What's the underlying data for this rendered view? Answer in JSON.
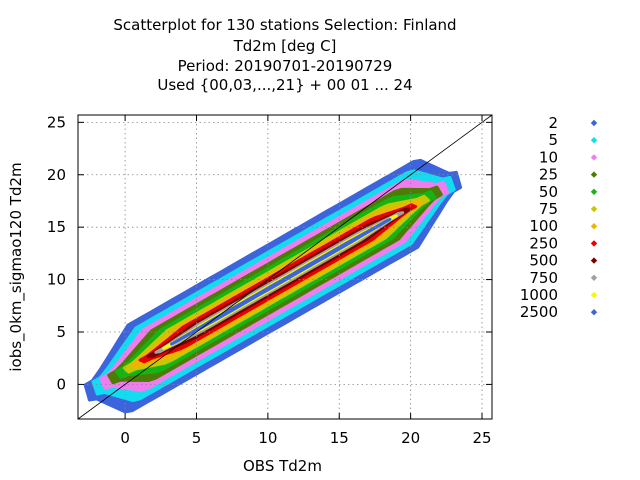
{
  "chart_data": {
    "type": "scatter",
    "title_lines": [
      "Scatterplot for  130 stations Selection: Finland",
      "Td2m [deg C]",
      "Period: 20190701-20190729",
      "Used {00,03,...,21} + 00 01 ... 24"
    ],
    "xlabel": "OBS Td2m",
    "ylabel": "iobs_0km_sigmao120 Td2m",
    "xlim": [
      -3.3,
      25.7
    ],
    "ylim": [
      -3.3,
      25.7
    ],
    "xticks": [
      0,
      5,
      10,
      15,
      20,
      25
    ],
    "yticks": [
      0,
      5,
      10,
      15,
      20,
      25
    ],
    "grid": true,
    "diagonal_line": true,
    "legend_position": "right",
    "density_levels": [
      {
        "label": "2",
        "color": "#3c64dc",
        "half_width": 4.2
      },
      {
        "label": "5",
        "color": "#14dcf0",
        "half_width": 3.6
      },
      {
        "label": "10",
        "color": "#f07cf0",
        "half_width": 3.1
      },
      {
        "label": "25",
        "color": "#4c7c04",
        "half_width": 2.6
      },
      {
        "label": "50",
        "color": "#14b414",
        "half_width": 2.2
      },
      {
        "label": "75",
        "color": "#c8c800",
        "half_width": 1.8
      },
      {
        "label": "100",
        "color": "#f0b400",
        "half_width": 1.55
      },
      {
        "label": "250",
        "color": "#e80000",
        "half_width": 1.25
      },
      {
        "label": "500",
        "color": "#780000",
        "half_width": 0.85
      },
      {
        "label": "750",
        "color": "#a0a0a0",
        "half_width": 0.55
      },
      {
        "label": "1000",
        "color": "#f8f800",
        "half_width": 0.3
      },
      {
        "label": "2500",
        "color": "#3c64dc",
        "half_width": 0.12
      }
    ]
  }
}
